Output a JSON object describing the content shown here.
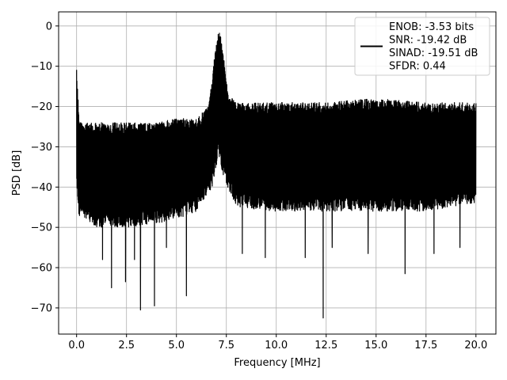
{
  "chart_data": {
    "type": "line",
    "title": "",
    "xlabel": "Frequency [MHz]",
    "ylabel": "PSD [dB]",
    "xlim": [
      -0.9,
      21.0
    ],
    "ylim": [
      -76.5,
      3.5
    ],
    "xticks": [
      0.0,
      2.5,
      5.0,
      7.5,
      10.0,
      12.5,
      15.0,
      17.5,
      20.0
    ],
    "xtick_labels": [
      "0.0",
      "2.5",
      "5.0",
      "7.5",
      "10.0",
      "12.5",
      "15.0",
      "17.5",
      "20.0"
    ],
    "yticks": [
      0,
      -10,
      -20,
      -30,
      -40,
      -50,
      -60,
      -70
    ],
    "ytick_labels": [
      "0",
      "−10",
      "−20",
      "−30",
      "−40",
      "−50",
      "−60",
      "−70"
    ],
    "grid": true,
    "legend_position": "top-right",
    "line_color": "#000000",
    "series": [
      {
        "name": "ENOB: -3.53 bits\nSNR: -19.42 dB\nSINAD: -19.51 dB\nSFDR: 0.44",
        "legend_lines": [
          "ENOB: -3.53 bits",
          "SNR: -19.42 dB",
          "SINAD: -19.51 dB",
          "SFDR: 0.44"
        ],
        "x_range": [
          0.0,
          20.0
        ],
        "upper_envelope_points": [
          [
            0.0,
            -9
          ],
          [
            0.03,
            -14
          ],
          [
            0.15,
            -24
          ],
          [
            1.0,
            -24
          ],
          [
            2.5,
            -24
          ],
          [
            4.0,
            -24
          ],
          [
            5.0,
            -23
          ],
          [
            6.0,
            -23
          ],
          [
            6.6,
            -20
          ],
          [
            6.9,
            -8
          ],
          [
            7.15,
            0
          ],
          [
            7.3,
            -5
          ],
          [
            7.6,
            -17
          ],
          [
            8.0,
            -19
          ],
          [
            10.0,
            -19
          ],
          [
            12.5,
            -19
          ],
          [
            15.0,
            -18
          ],
          [
            17.5,
            -19
          ],
          [
            20.0,
            -19
          ]
        ],
        "lower_envelope_points": [
          [
            0.0,
            -40
          ],
          [
            0.1,
            -47
          ],
          [
            1.0,
            -50
          ],
          [
            2.5,
            -50
          ],
          [
            4.0,
            -49
          ],
          [
            5.0,
            -48
          ],
          [
            6.0,
            -46
          ],
          [
            6.8,
            -40
          ],
          [
            7.1,
            -32
          ],
          [
            7.4,
            -38
          ],
          [
            8.0,
            -45
          ],
          [
            10.0,
            -46
          ],
          [
            12.5,
            -46
          ],
          [
            15.0,
            -46
          ],
          [
            17.5,
            -46
          ],
          [
            20.0,
            -44
          ]
        ],
        "deep_minima": [
          [
            1.75,
            -65
          ],
          [
            2.45,
            -63.5
          ],
          [
            3.2,
            -70.5
          ],
          [
            3.9,
            -69.5
          ],
          [
            5.5,
            -67
          ],
          [
            12.35,
            -72.5
          ],
          [
            16.45,
            -61.5
          ],
          [
            1.3,
            -58
          ],
          [
            2.9,
            -58
          ],
          [
            9.45,
            -57.5
          ],
          [
            11.45,
            -57.5
          ],
          [
            14.6,
            -56.5
          ],
          [
            17.9,
            -56.5
          ],
          [
            8.3,
            -56.5
          ],
          [
            4.5,
            -55
          ],
          [
            12.8,
            -55
          ],
          [
            19.2,
            -55
          ]
        ]
      }
    ]
  }
}
